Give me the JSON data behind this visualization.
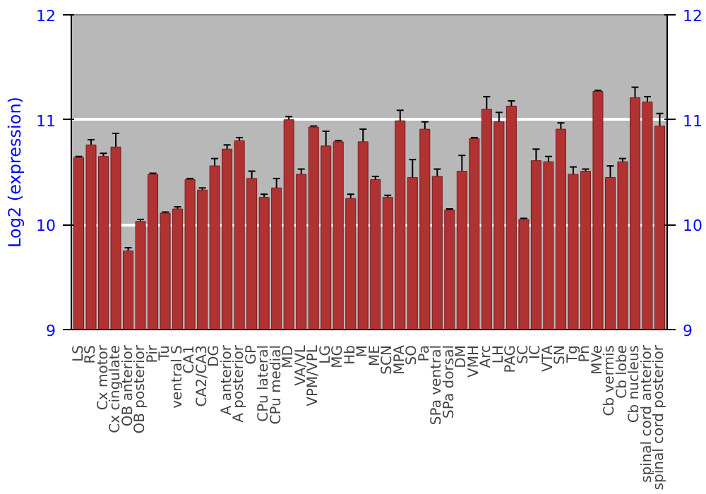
{
  "chart_data": {
    "type": "bar",
    "ylabel": "Log2 (expression)",
    "categories": [
      "LS",
      "RS",
      "Cx motor",
      "Cx cingulate",
      "OB anterior",
      "OB posterior",
      "Pir",
      "Tu",
      "ventral S",
      "CA1",
      "CA2/CA3",
      "DG",
      "A anterior",
      "A posterior",
      "GP",
      "CPu lateral",
      "CPu medial",
      "MD",
      "VA/VL",
      "VPM/VPL",
      "LG",
      "MG",
      "Hb",
      "M",
      "ME",
      "SCN",
      "MPA",
      "SO",
      "Pa",
      "SPa ventral",
      "SPa dorsal",
      "DM",
      "VMH",
      "Arc",
      "LH",
      "PAG",
      "SC",
      "IC",
      "VTA",
      "SN",
      "Tg",
      "Pn",
      "MVe",
      "Cb vermis",
      "Cb lobe",
      "Cb nucleus",
      "spinal cord anterior",
      "spinal cord posterior"
    ],
    "values": [
      10.64,
      10.76,
      10.65,
      10.74,
      9.75,
      10.03,
      10.48,
      10.11,
      10.15,
      10.43,
      10.33,
      10.56,
      10.72,
      10.8,
      10.44,
      10.26,
      10.35,
      11.0,
      10.48,
      10.93,
      10.75,
      10.79,
      10.25,
      10.79,
      10.43,
      10.26,
      10.99,
      10.45,
      10.91,
      10.46,
      10.14,
      10.51,
      10.82,
      11.1,
      10.98,
      11.13,
      10.05,
      10.61,
      10.6,
      10.91,
      10.48,
      10.51,
      11.27,
      10.45,
      10.6,
      11.21,
      11.17,
      10.94
    ],
    "errors": [
      0.01,
      0.05,
      0.03,
      0.13,
      0.03,
      0.02,
      0.01,
      0.01,
      0.02,
      0.01,
      0.02,
      0.07,
      0.04,
      0.03,
      0.07,
      0.03,
      0.09,
      0.03,
      0.05,
      0.01,
      0.14,
      0.01,
      0.04,
      0.12,
      0.03,
      0.02,
      0.1,
      0.17,
      0.07,
      0.07,
      0.01,
      0.15,
      0.01,
      0.12,
      0.09,
      0.05,
      0.01,
      0.11,
      0.05,
      0.06,
      0.07,
      0.02,
      0.01,
      0.11,
      0.03,
      0.1,
      0.05,
      0.12
    ],
    "color": "#b03232",
    "ylim": [
      9,
      12
    ],
    "yticks": [
      9,
      10,
      11,
      12
    ],
    "y2lim": [
      9,
      12
    ],
    "y2ticks": [
      9,
      10,
      11,
      12
    ],
    "grid": "y"
  }
}
